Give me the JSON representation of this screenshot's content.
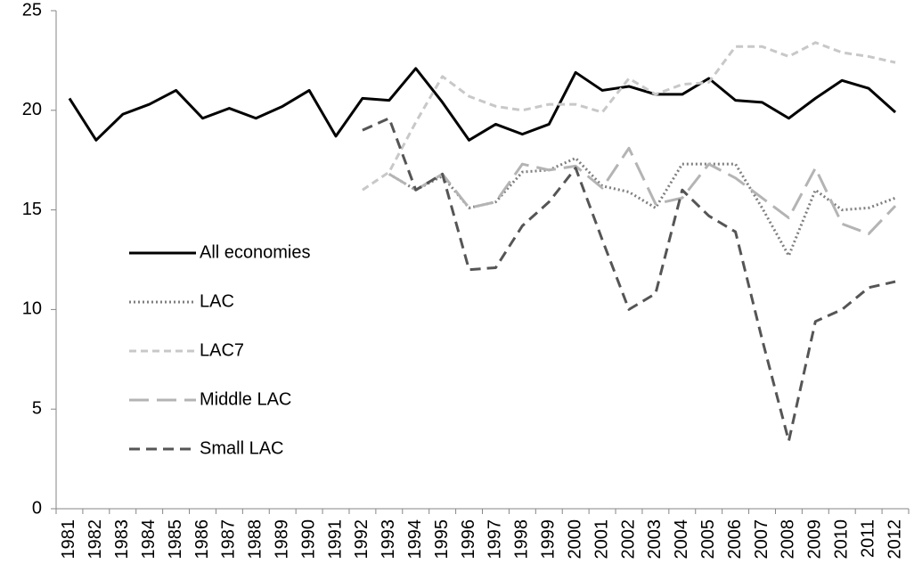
{
  "chart_data": {
    "type": "line",
    "categories": [
      "1981",
      "1982",
      "1983",
      "1984",
      "1985",
      "1986",
      "1987",
      "1988",
      "1989",
      "1990",
      "1991",
      "1992",
      "1993",
      "1994",
      "1995",
      "1996",
      "1997",
      "1998",
      "1999",
      "2000",
      "2001",
      "2002",
      "2003",
      "2004",
      "2005",
      "2006",
      "2007",
      "2008",
      "2009",
      "2010",
      "2011",
      "2012"
    ],
    "series": [
      {
        "name": "All economies",
        "color": "#000000",
        "dash": "none",
        "values": [
          20.6,
          18.5,
          19.8,
          20.3,
          21.0,
          19.6,
          20.1,
          19.6,
          20.2,
          21.0,
          18.7,
          20.6,
          20.5,
          22.1,
          20.4,
          18.5,
          19.3,
          18.8,
          19.3,
          21.9,
          21.0,
          21.2,
          20.8,
          20.8,
          21.6,
          20.5,
          20.4,
          19.6,
          20.6,
          21.5,
          21.1,
          19.9
        ]
      },
      {
        "name": "LAC",
        "color": "#7f7f7f",
        "dash": "2 3",
        "values": [
          null,
          null,
          null,
          null,
          null,
          null,
          null,
          null,
          null,
          null,
          null,
          null,
          16.8,
          16.0,
          16.7,
          15.1,
          15.4,
          16.9,
          17.0,
          17.6,
          16.2,
          15.9,
          15.1,
          17.3,
          17.3,
          17.3,
          15.1,
          12.7,
          16.0,
          15.0,
          15.1,
          15.6
        ]
      },
      {
        "name": "LAC7",
        "color": "#c8c8c8",
        "dash": "8 5",
        "values": [
          null,
          null,
          null,
          null,
          null,
          null,
          null,
          null,
          null,
          null,
          null,
          16.0,
          16.9,
          19.4,
          21.7,
          20.7,
          20.2,
          20.0,
          20.3,
          20.3,
          19.9,
          21.6,
          20.8,
          21.3,
          21.4,
          23.2,
          23.2,
          22.7,
          23.4,
          22.9,
          22.7,
          22.4
        ]
      },
      {
        "name": "Middle LAC",
        "color": "#b4b4b4",
        "dash": "22 9",
        "values": [
          null,
          null,
          null,
          null,
          null,
          null,
          null,
          null,
          null,
          null,
          null,
          null,
          16.8,
          16.0,
          16.8,
          15.1,
          15.4,
          17.3,
          17.0,
          17.2,
          16.1,
          18.1,
          15.3,
          15.6,
          17.3,
          16.6,
          15.6,
          14.6,
          17.1,
          14.3,
          13.8,
          15.2
        ]
      },
      {
        "name": "Small LAC",
        "color": "#555555",
        "dash": "12 7",
        "values": [
          null,
          null,
          null,
          null,
          null,
          null,
          null,
          null,
          null,
          null,
          null,
          19.0,
          19.6,
          16.0,
          16.8,
          12.0,
          12.1,
          14.2,
          15.4,
          17.1,
          13.5,
          10.0,
          10.8,
          16.0,
          14.7,
          13.9,
          8.5,
          3.4,
          9.4,
          10.0,
          11.1,
          11.4
        ]
      }
    ],
    "ylim": [
      0,
      25
    ],
    "yticks": [
      0,
      5,
      10,
      15,
      20,
      25
    ],
    "grid": false,
    "legend": "left"
  }
}
